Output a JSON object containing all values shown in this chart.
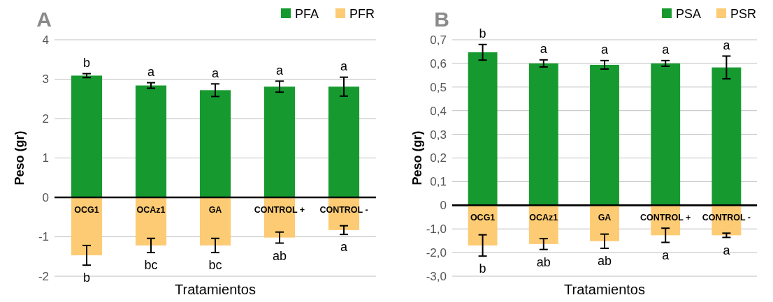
{
  "chart_data": [
    {
      "type": "bar",
      "title": "A",
      "xlabel": "Tratamientos",
      "ylabel": "Peso (gr)",
      "stacked": true,
      "grid": "y",
      "legend": "top right",
      "categories": [
        "OCG1",
        "OCAz1",
        "GA",
        "CONTROL +",
        "CONTROL -"
      ],
      "series": [
        {
          "name": "PFA",
          "color": "#169a2f",
          "values": [
            3.09,
            2.84,
            2.72,
            2.81,
            2.81
          ],
          "errors": [
            0.05,
            0.07,
            0.16,
            0.14,
            0.24
          ]
        },
        {
          "name": "PFR",
          "color": "#fccb74",
          "values": [
            -1.47,
            -1.22,
            -1.22,
            -1.02,
            -0.83
          ],
          "errors": [
            0.25,
            0.18,
            0.18,
            0.14,
            0.11
          ]
        }
      ],
      "ylim": [
        -2,
        4
      ],
      "yticks": [
        -2,
        -1,
        0,
        1,
        2,
        3,
        4
      ],
      "annotations": [
        {
          "text": "b",
          "x": "OCG1",
          "y": 3.09
        },
        {
          "text": "a",
          "x": "OCAz1",
          "y": 2.84
        },
        {
          "text": "a",
          "x": "GA",
          "y": 2.72
        },
        {
          "text": "a",
          "x": "CONTROL +",
          "y": 2.81
        },
        {
          "text": "a",
          "x": "CONTROL -",
          "y": 2.81
        },
        {
          "text": "b",
          "x": "OCG1",
          "y": -1.47
        },
        {
          "text": "bc",
          "x": "OCAz1",
          "y": -1.22
        },
        {
          "text": "bc",
          "x": "GA",
          "y": -1.22
        },
        {
          "text": "ab",
          "x": "CONTROL +",
          "y": -1.02
        },
        {
          "text": "a",
          "x": "CONTROL -",
          "y": -0.83
        }
      ]
    },
    {
      "type": "bar",
      "title": "B",
      "ylabel": "Peso (gr)",
      "grid": "y",
      "legend": "top right",
      "tick_labels": "y",
      "categories": [
        "OCG1",
        "OCAz1",
        "GA",
        "CONTROL +",
        "CONTROL -"
      ],
      "series": [
        {
          "name": "PSA",
          "color": "#169a2f",
          "values": [
            0.647,
            0.6,
            0.594,
            0.6,
            0.583
          ],
          "errors": [
            0.033,
            0.015,
            0.018,
            0.012,
            0.048
          ]
        }
      ],
      "ylim": [
        0,
        0.7
      ],
      "yticks": [
        0,
        {
          "value": 0.1,
          "label": "0,1"
        },
        {
          "value": 0.2,
          "label": "0,2"
        },
        {
          "value": 0.3,
          "label": "0,3"
        },
        {
          "value": 0.4,
          "label": "0,4"
        },
        {
          "value": 0.5,
          "label": "0,5"
        },
        {
          "value": 0.6,
          "label": "0,6"
        },
        {
          "value": 0.7,
          "label": "0,7"
        }
      ],
      "annotations": [
        {
          "text": "b",
          "x": "OCG1",
          "y": 0.647
        },
        {
          "text": "a",
          "x": "OCAz1",
          "y": 0.6
        },
        {
          "text": "a",
          "x": "GA",
          "y": 0.594
        },
        {
          "text": "a",
          "x": "CONTROL +",
          "y": 0.6
        },
        {
          "text": "a",
          "x": "CONTROL -",
          "y": 0.583
        }
      ]
    },
    {
      "type": "bar",
      "xlabel": "Tratamientos",
      "grid": "y",
      "legend": "top right",
      "categories": [
        "OCG1",
        "OCAz1",
        "GA",
        "CONTROL +",
        "CONTROL -"
      ],
      "series": [
        {
          "name": "PSR",
          "color": "#fccb74",
          "values": [
            -1.7,
            -1.64,
            -1.52,
            -1.27,
            -1.27
          ],
          "errors": [
            0.45,
            0.23,
            0.3,
            0.3,
            0.09
          ]
        }
      ],
      "ylim": [
        -3,
        0
      ],
      "yticks": [
        {
          "value": -3,
          "label": "-3,0"
        },
        {
          "value": -2,
          "label": "-2,0"
        },
        {
          "value": -1,
          "label": "-1,0"
        }
      ],
      "annotations": [
        {
          "text": "b",
          "x": "OCG1",
          "y": -1.7
        },
        {
          "text": "ab",
          "x": "OCAz1",
          "y": -1.64
        },
        {
          "text": "ab",
          "x": "GA",
          "y": -1.52
        },
        {
          "text": "a",
          "x": "CONTROL +",
          "y": -1.27
        },
        {
          "text": "a",
          "x": "CONTROL -",
          "y": -1.27
        }
      ]
    }
  ]
}
